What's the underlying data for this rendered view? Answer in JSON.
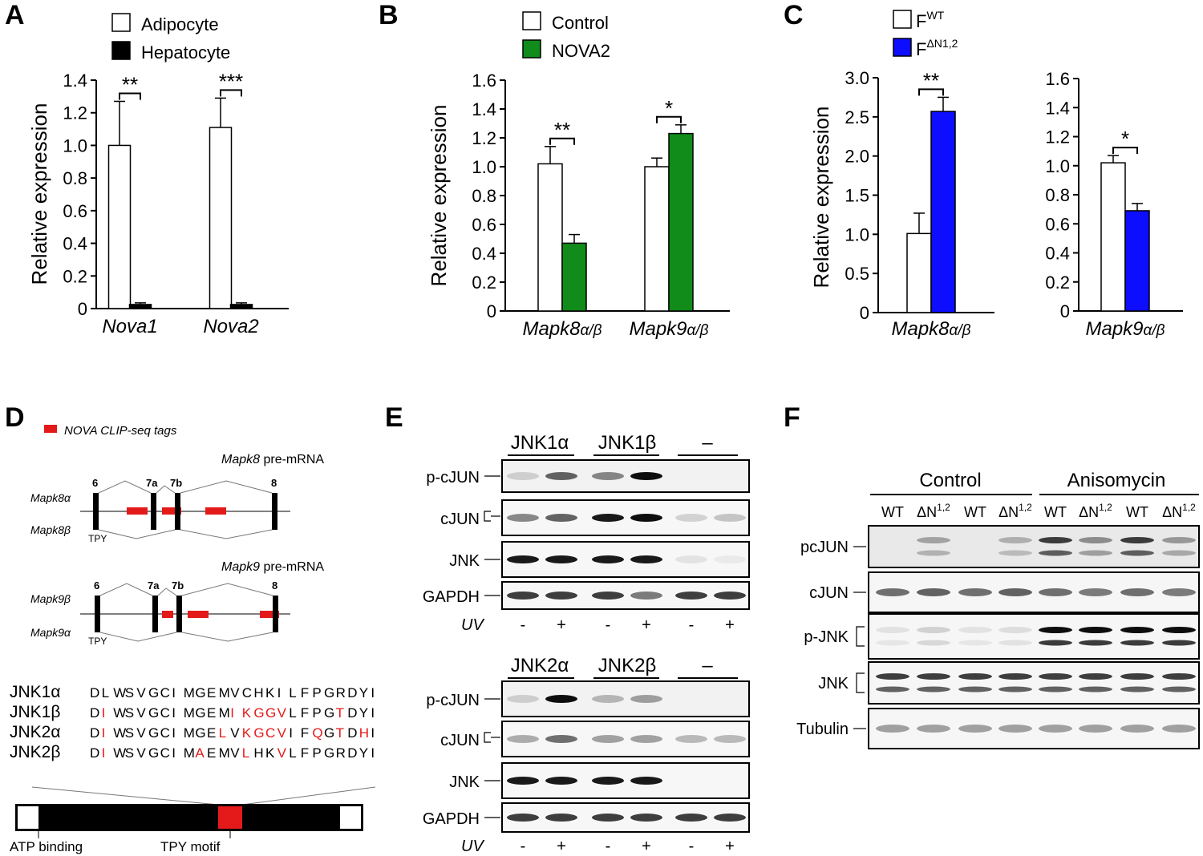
{
  "panels": {
    "A": {
      "letter": "A"
    },
    "B": {
      "letter": "B"
    },
    "C": {
      "letter": "C"
    },
    "D": {
      "letter": "D"
    },
    "E": {
      "letter": "E"
    },
    "F": {
      "letter": "F"
    }
  },
  "chart_data": [
    {
      "id": "A",
      "type": "bar",
      "categories": [
        "Nova1",
        "Nova2"
      ],
      "series": [
        {
          "name": "Adipocyte",
          "values": [
            1.0,
            1.11
          ],
          "errors": [
            0.27,
            0.18
          ]
        },
        {
          "name": "Hepatocyte",
          "values": [
            0.025,
            0.025
          ],
          "errors": [
            0.01,
            0.01
          ]
        }
      ],
      "significance": [
        "**",
        "***"
      ],
      "ylabel": "Relative expression",
      "ylim": [
        0,
        1.4
      ],
      "yticks": [
        "0",
        "0.2",
        "0.4",
        "0.6",
        "0.8",
        "1.0",
        "1.2",
        "1.4"
      ],
      "colors": [
        "#ffffff",
        "#000000"
      ]
    },
    {
      "id": "B",
      "type": "bar",
      "categories": [
        "Mapk8α/β",
        "Mapk9α/β"
      ],
      "series": [
        {
          "name": "Control",
          "values": [
            1.02,
            1.0
          ],
          "errors": [
            0.12,
            0.06
          ]
        },
        {
          "name": "NOVA2",
          "values": [
            0.47,
            1.23
          ],
          "errors": [
            0.06,
            0.06
          ]
        }
      ],
      "significance": [
        "**",
        "*"
      ],
      "ylabel": "Relative expression",
      "ylim": [
        0,
        1.6
      ],
      "yticks": [
        "0",
        "0.2",
        "0.4",
        "0.6",
        "0.8",
        "1.0",
        "1.2",
        "1.4",
        "1.6"
      ],
      "colors": [
        "#ffffff",
        "#118c1a"
      ]
    },
    {
      "id": "C1",
      "type": "bar",
      "categories": [
        "Mapk8α/β"
      ],
      "series": [
        {
          "name": "FWT",
          "values": [
            1.01
          ],
          "errors": [
            0.26
          ]
        },
        {
          "name": "FΔN1,2",
          "values": [
            2.57
          ],
          "errors": [
            0.18
          ]
        }
      ],
      "significance": [
        "**"
      ],
      "ylabel": "Relative expression",
      "ylim": [
        0,
        3.0
      ],
      "yticks": [
        "0",
        "0.5",
        "1.0",
        "1.5",
        "2.0",
        "2.5",
        "3.0"
      ],
      "colors": [
        "#ffffff",
        "#0d0dff"
      ]
    },
    {
      "id": "C2",
      "type": "bar",
      "categories": [
        "Mapk9α/β"
      ],
      "series": [
        {
          "name": "FWT",
          "values": [
            1.02
          ],
          "errors": [
            0.05
          ]
        },
        {
          "name": "FΔN1,2",
          "values": [
            0.69
          ],
          "errors": [
            0.05
          ]
        }
      ],
      "significance": [
        "*"
      ],
      "ylabel": "",
      "ylim": [
        0,
        1.6
      ],
      "yticks": [
        "0",
        "0.2",
        "0.4",
        "0.6",
        "0.8",
        "1.0",
        "1.2",
        "1.4",
        "1.6"
      ],
      "colors": [
        "#ffffff",
        "#0d0dff"
      ]
    }
  ],
  "panel_C_legend": {
    "wt_base": "F",
    "wt_sup": "WT",
    "mut_base": "F",
    "mut_sup": "ΔN1,2"
  },
  "panel_D": {
    "legend": "NOVA CLIP-seq tags",
    "mapk8": {
      "title_gene": "Mapk8",
      "title_rest": " pre-mRNA",
      "iso_top": "Mapk8α",
      "iso_bottom": "Mapk8β",
      "tpy": "TPY",
      "exons": [
        "6",
        "7a",
        "7b",
        "8"
      ]
    },
    "mapk9": {
      "title_gene": "Mapk9",
      "title_rest": " pre-mRNA",
      "iso_top": "Mapk9β",
      "iso_bottom": "Mapk9α",
      "tpy": "TPY",
      "exons": [
        "6",
        "7a",
        "7b",
        "8"
      ]
    },
    "sequences": [
      {
        "name": "JNK1α",
        "residues": [
          "D",
          "L",
          "W",
          "S",
          "V",
          "G",
          "C",
          "I",
          "M",
          "G",
          "E",
          "M",
          "V",
          "C",
          "H",
          "K",
          "I",
          "L",
          "F",
          "P",
          "G",
          "R",
          "D",
          "Y",
          "I"
        ],
        "red": []
      },
      {
        "name": "JNK1β",
        "residues": [
          "D",
          "I",
          "W",
          "S",
          "V",
          "G",
          "C",
          "I",
          "M",
          "G",
          "E",
          "M",
          "I",
          "K",
          "G",
          "G",
          "V",
          "L",
          "F",
          "P",
          "G",
          "T",
          "D",
          "Y",
          "I"
        ],
        "red": [
          1,
          12,
          13,
          14,
          15,
          16,
          21
        ]
      },
      {
        "name": "JNK2α",
        "residues": [
          "D",
          "I",
          "W",
          "S",
          "V",
          "G",
          "C",
          "I",
          "M",
          "G",
          "E",
          "L",
          "V",
          "K",
          "G",
          "C",
          "V",
          "I",
          "F",
          "Q",
          "G",
          "T",
          "D",
          "H",
          "I"
        ],
        "red": [
          1,
          11,
          13,
          14,
          15,
          16,
          19,
          21,
          23
        ]
      },
      {
        "name": "JNK2β",
        "residues": [
          "D",
          "I",
          "W",
          "S",
          "V",
          "G",
          "C",
          "I",
          "M",
          "A",
          "E",
          "M",
          "V",
          "L",
          "H",
          "K",
          "V",
          "L",
          "F",
          "P",
          "G",
          "R",
          "D",
          "Y",
          "I"
        ],
        "red": [
          1,
          9,
          13,
          16
        ]
      }
    ],
    "domain_labels": {
      "atp": "ATP binding",
      "tpy": "TPY motif"
    }
  },
  "panel_E": {
    "top": {
      "groups": [
        "JNK1α",
        "JNK1β",
        "–"
      ],
      "rows": [
        "p-cJUN",
        "cJUN",
        "JNK",
        "GAPDH"
      ]
    },
    "bottom": {
      "groups": [
        "JNK2α",
        "JNK2β",
        "–"
      ],
      "rows": [
        "p-cJUN",
        "cJUN",
        "JNK",
        "GAPDH"
      ]
    },
    "uv_label": "UV",
    "uv_values": [
      "-",
      "+",
      "-",
      "+",
      "-",
      "+"
    ]
  },
  "panel_F": {
    "groups": [
      "Control",
      "Anisomycin"
    ],
    "lanes": [
      {
        "base": "WT",
        "sup": ""
      },
      {
        "base": "ΔN",
        "sup": "1,2"
      },
      {
        "base": "WT",
        "sup": ""
      },
      {
        "base": "ΔN",
        "sup": "1,2"
      },
      {
        "base": "WT",
        "sup": ""
      },
      {
        "base": "ΔN",
        "sup": "1,2"
      },
      {
        "base": "WT",
        "sup": ""
      },
      {
        "base": "ΔN",
        "sup": "1,2"
      }
    ],
    "rows": [
      "pcJUN",
      "cJUN",
      "p-JNK",
      "JNK",
      "Tubulin"
    ]
  }
}
